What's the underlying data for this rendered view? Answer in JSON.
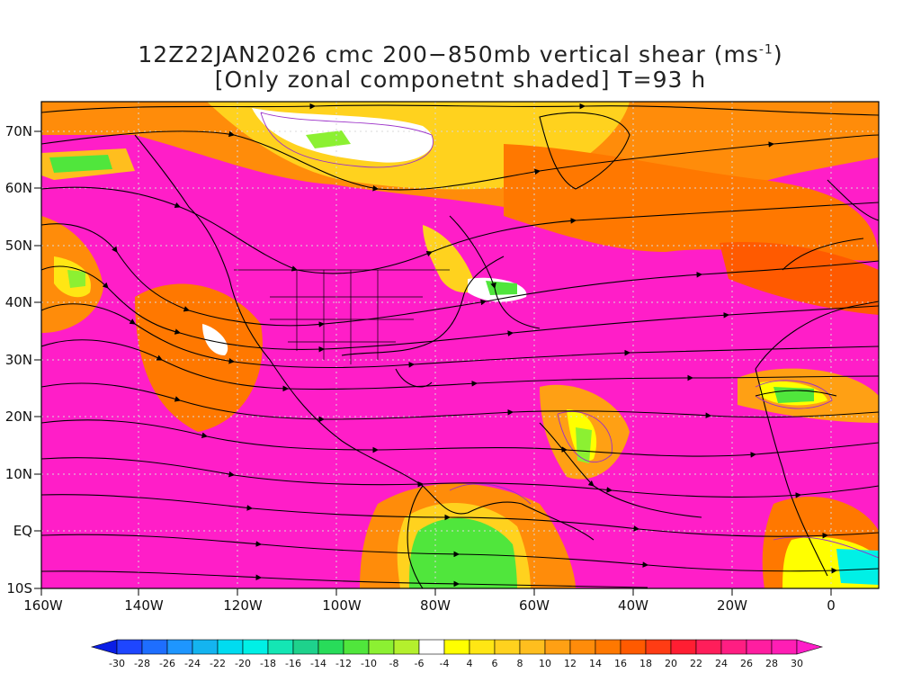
{
  "title": {
    "line1_prefix": "12Z22JAN2026 cmc 200−850mb vertical shear (ms",
    "line1_sup": "-1",
    "line1_suffix": ")",
    "line2": "[Only zonal componetnt shaded] T=93 h"
  },
  "axes": {
    "lon_labels": [
      "160W",
      "140W",
      "120W",
      "100W",
      "80W",
      "60W",
      "40W",
      "20W",
      "0"
    ],
    "lat_labels": [
      "70N",
      "60N",
      "50N",
      "40N",
      "30N",
      "20N",
      "10N",
      "EQ",
      "10S"
    ]
  },
  "colorbar": {
    "labels": [
      "-30",
      "-28",
      "-26",
      "-24",
      "-22",
      "-20",
      "-18",
      "-16",
      "-14",
      "-12",
      "-10",
      "-8",
      "-6",
      "-4",
      "4",
      "6",
      "8",
      "10",
      "12",
      "14",
      "16",
      "18",
      "20",
      "22",
      "24",
      "26",
      "28",
      "30"
    ],
    "colors": [
      "#0a1ee6",
      "#1e46ff",
      "#1e6eff",
      "#1e96ff",
      "#14b4f0",
      "#00dcf0",
      "#00f0e6",
      "#14e6b4",
      "#1ed28c",
      "#28dc5a",
      "#50e63c",
      "#8cf032",
      "#b4f02d",
      "#ffffff",
      "#ffff00",
      "#ffe614",
      "#ffd21e",
      "#ffbe1e",
      "#ffa014",
      "#ff8c0a",
      "#ff7800",
      "#ff5a00",
      "#ff3c14",
      "#ff1e32",
      "#ff1e5a",
      "#ff1e82",
      "#ff1ea0",
      "#ff1eb4",
      "#ff1ec8"
    ]
  }
}
